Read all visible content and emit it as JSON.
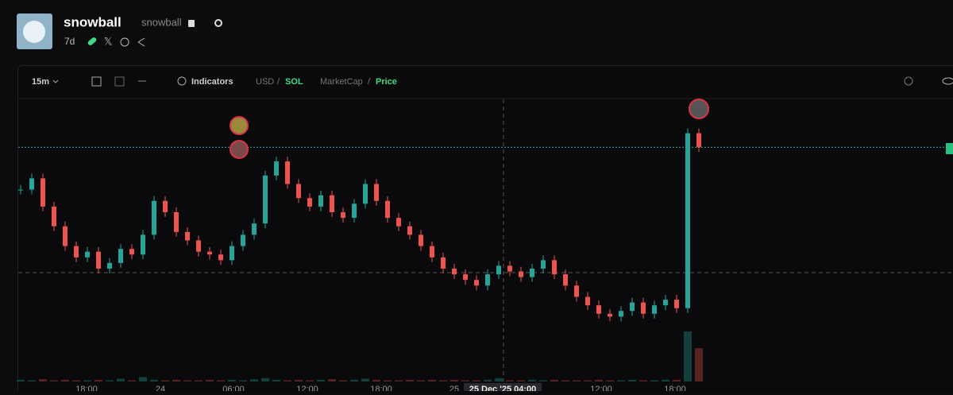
{
  "header": {
    "name": "snowball",
    "ticker": "snowball",
    "age": "7d"
  },
  "toolbar": {
    "interval": "15m",
    "indicators": "Indicators",
    "currency": [
      "USD",
      "SOL"
    ],
    "metric": [
      "MarketCap",
      "Price"
    ],
    "separator": "/"
  },
  "chart_data": {
    "type": "candlestick",
    "x_labels": [
      "18:00",
      "24",
      "06:00",
      "12:00",
      "18:00",
      "25",
      "12:00",
      "18:00"
    ],
    "crosshair_label": "25 Dec '25  04:00",
    "values": [
      68,
      72,
      62,
      55,
      48,
      44,
      46,
      40,
      42,
      47,
      45,
      52,
      64,
      60,
      53,
      50,
      46,
      45,
      43,
      48,
      52,
      56,
      73,
      78,
      70,
      65,
      62,
      66,
      60,
      58,
      63,
      70,
      64,
      58,
      55,
      52,
      48,
      44,
      40,
      38,
      36,
      34,
      38,
      41,
      39,
      37,
      40,
      43,
      38,
      34,
      30,
      27,
      24,
      23,
      25,
      28,
      24,
      27,
      29,
      26,
      88,
      83
    ],
    "volumes": [
      3,
      2,
      4,
      2,
      3,
      2,
      2,
      3,
      2,
      5,
      2,
      8,
      3,
      2,
      3,
      2,
      2,
      3,
      2,
      3,
      2,
      4,
      6,
      3,
      2,
      3,
      2,
      3,
      4,
      2,
      3,
      5,
      3,
      2,
      2,
      3,
      2,
      3,
      2,
      3,
      2,
      2,
      3,
      6,
      2,
      2,
      3,
      2,
      3,
      2,
      2,
      2,
      3,
      2,
      2,
      3,
      2,
      2,
      3,
      3,
      90,
      60
    ],
    "ylim": [
      0,
      100
    ],
    "volume_lim": [
      0,
      100
    ],
    "up_color": "#26a69a",
    "down_color": "#ef5350"
  }
}
